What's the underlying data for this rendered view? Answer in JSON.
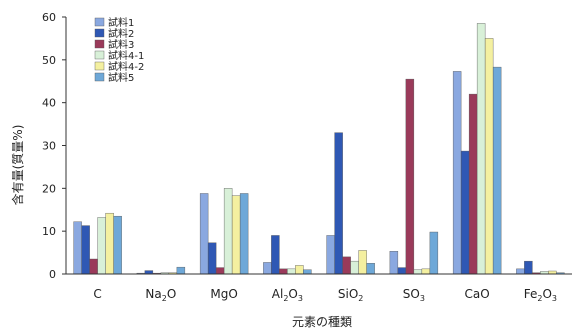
{
  "chart_data": {
    "type": "bar",
    "title": "",
    "xlabel": "元素の種類",
    "ylabel": "含有量(質量%)",
    "ylim": [
      0,
      60
    ],
    "yticks": [
      "0",
      "10",
      "20",
      "30",
      "40",
      "50",
      "60"
    ],
    "grid": false,
    "legend_position": "top-left",
    "categories": [
      "C",
      "Na2O",
      "MgO",
      "Al2O3",
      "SiO2",
      "SO3",
      "CaO",
      "Fe2O3"
    ],
    "category_labels": [
      {
        "base": "C",
        "parts": [
          [
            "C",
            ""
          ]
        ]
      },
      {
        "base": "Na2O",
        "parts": [
          [
            "Na",
            ""
          ],
          [
            "2",
            "sub"
          ],
          [
            "O",
            ""
          ]
        ]
      },
      {
        "base": "MgO",
        "parts": [
          [
            "MgO",
            ""
          ]
        ]
      },
      {
        "base": "Al2O3",
        "parts": [
          [
            "Al",
            ""
          ],
          [
            "2",
            "sub"
          ],
          [
            "O",
            ""
          ],
          [
            "3",
            "sub"
          ]
        ]
      },
      {
        "base": "SiO2",
        "parts": [
          [
            "SiO",
            ""
          ],
          [
            "2",
            "sub"
          ]
        ]
      },
      {
        "base": "SO3",
        "parts": [
          [
            "SO",
            ""
          ],
          [
            "3",
            "sub"
          ]
        ]
      },
      {
        "base": "CaO",
        "parts": [
          [
            "CaO",
            ""
          ]
        ]
      },
      {
        "base": "Fe2O3",
        "parts": [
          [
            "Fe",
            ""
          ],
          [
            "2",
            "sub"
          ],
          [
            "O",
            ""
          ],
          [
            "3",
            "sub"
          ]
        ]
      }
    ],
    "series": [
      {
        "name": "試料1",
        "color": "#8aa8e0",
        "values": [
          12.2,
          0.2,
          18.8,
          2.7,
          9.0,
          5.3,
          47.3,
          1.2
        ]
      },
      {
        "name": "試料2",
        "color": "#2f58b4",
        "values": [
          11.3,
          0.8,
          7.3,
          9.0,
          33.0,
          1.5,
          28.7,
          3.0
        ]
      },
      {
        "name": "試料3",
        "color": "#9a3a5a",
        "values": [
          3.5,
          0.2,
          1.5,
          1.2,
          4.0,
          45.5,
          42.0,
          0.3
        ]
      },
      {
        "name": "試料4-1",
        "color": "#d8f0d8",
        "values": [
          13.2,
          0.3,
          20.0,
          1.2,
          3.0,
          1.0,
          58.5,
          0.6
        ]
      },
      {
        "name": "試料4-2",
        "color": "#f4f0a0",
        "values": [
          14.2,
          0.3,
          18.3,
          2.0,
          5.5,
          1.2,
          55.0,
          0.7
        ]
      },
      {
        "name": "試料5",
        "color": "#6ea8d8",
        "values": [
          13.5,
          1.6,
          18.8,
          1.0,
          2.5,
          9.8,
          48.3,
          0.3
        ]
      }
    ]
  }
}
